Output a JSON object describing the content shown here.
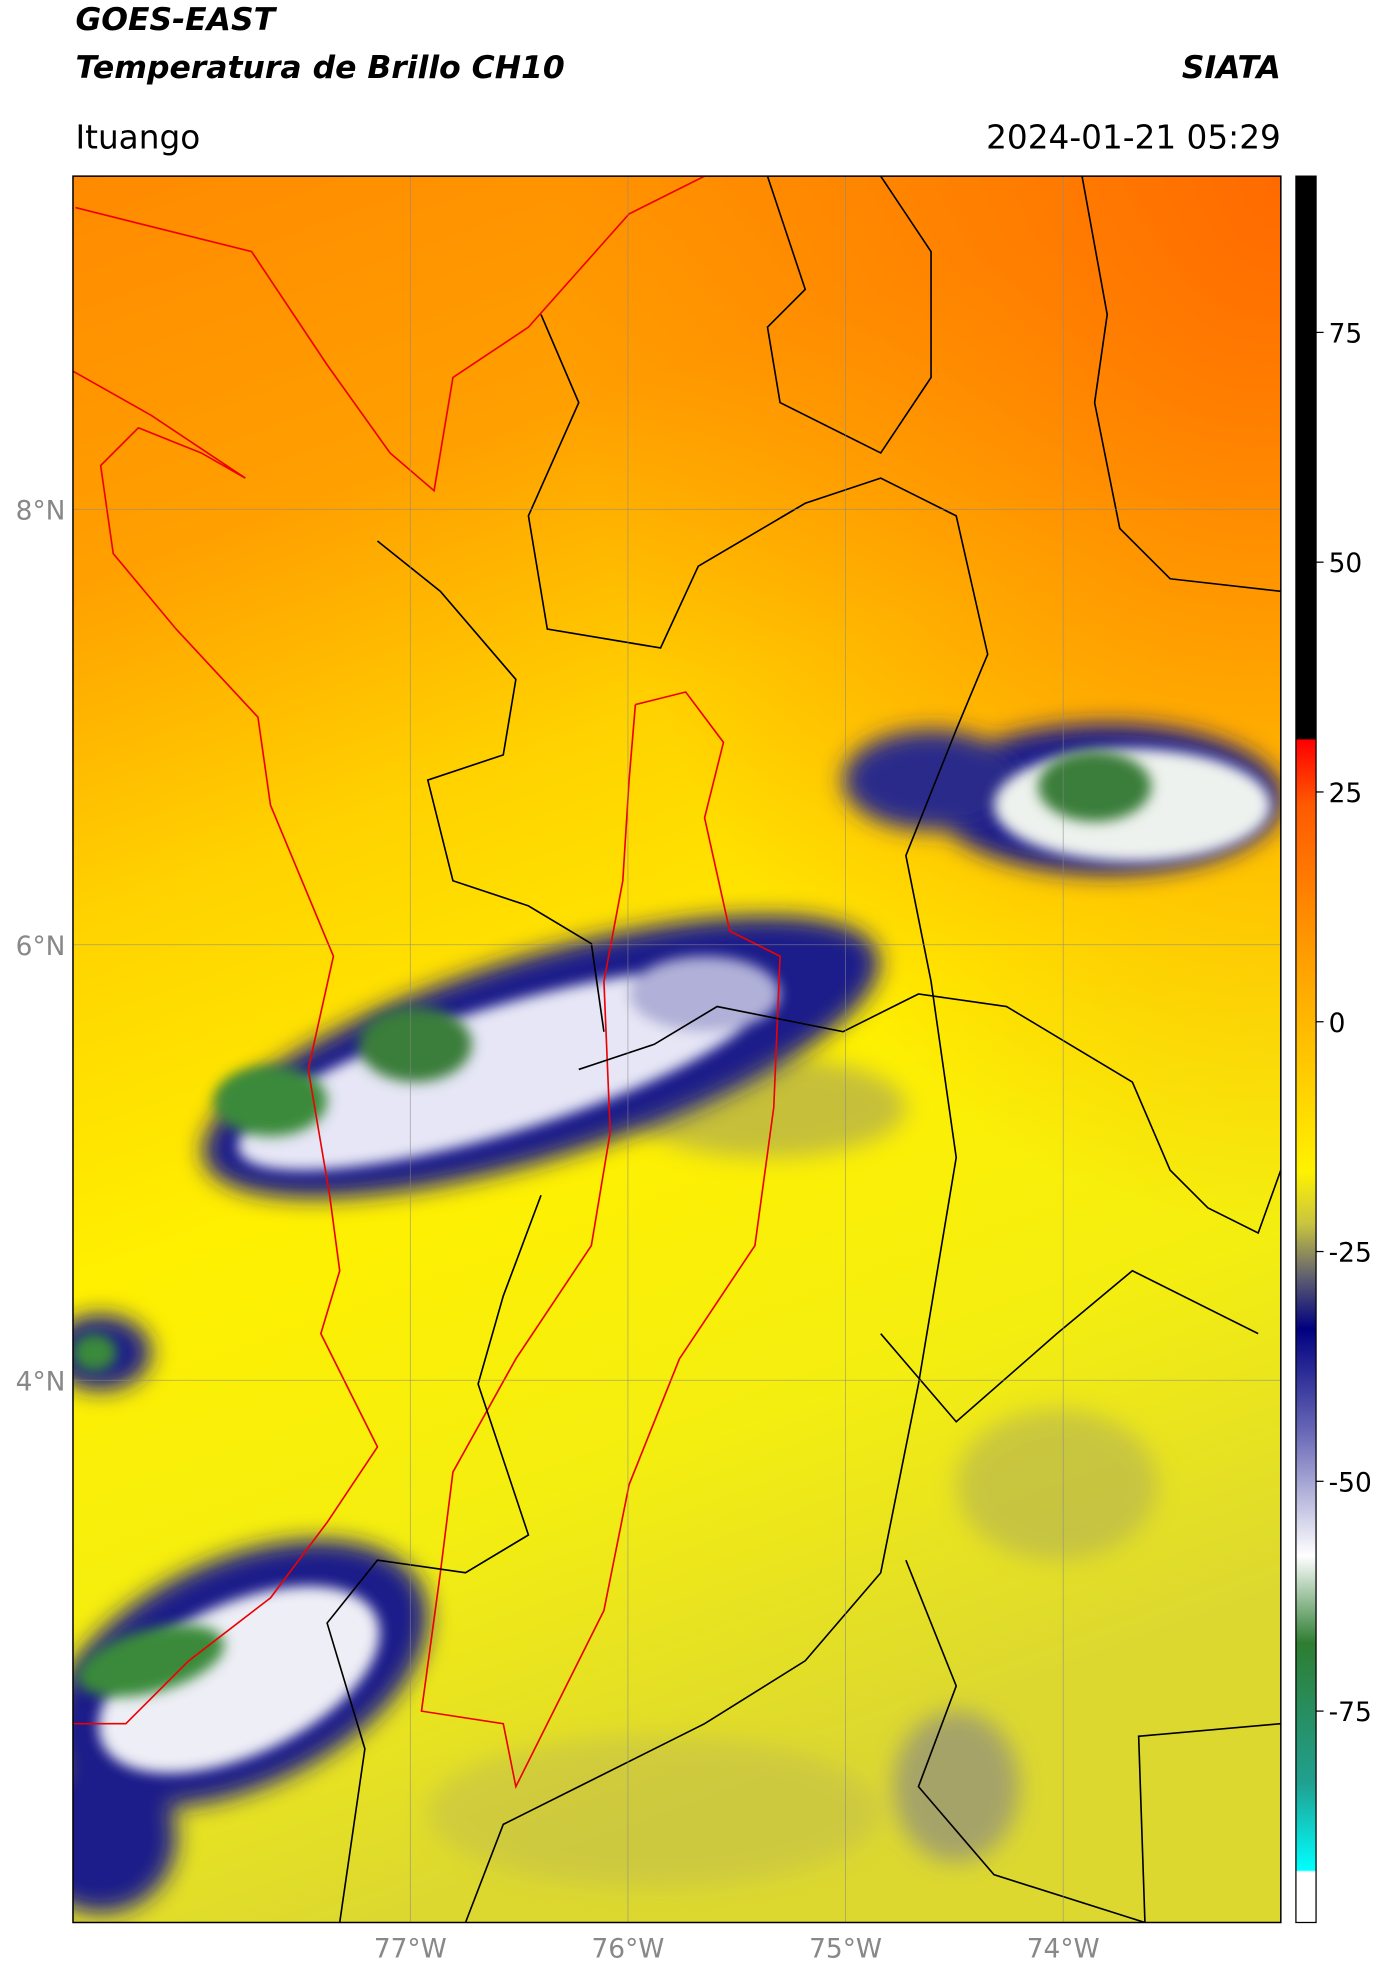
{
  "header": {
    "title": "GOES-EAST",
    "subtitle": "Temperatura de Brillo CH10",
    "source": "SIATA",
    "location": "Ituango",
    "datetime": "2024-01-21 05:29"
  },
  "map": {
    "xlim": [
      -78.55,
      -73.0
    ],
    "ylim": [
      1.51,
      9.53
    ],
    "xticks": [
      {
        "value": -77,
        "label": "77°W"
      },
      {
        "value": -76,
        "label": "76°W"
      },
      {
        "value": -75,
        "label": "75°W"
      },
      {
        "value": -74,
        "label": "74°W"
      }
    ],
    "yticks": [
      {
        "value": 8,
        "label": "8°N"
      },
      {
        "value": 6,
        "label": "6°N"
      },
      {
        "value": 4,
        "label": "4°N"
      }
    ]
  },
  "colorbar": {
    "lim": [
      -98,
      92
    ],
    "ticks": [
      75,
      50,
      25,
      0,
      -25,
      -50,
      -75
    ]
  }
}
